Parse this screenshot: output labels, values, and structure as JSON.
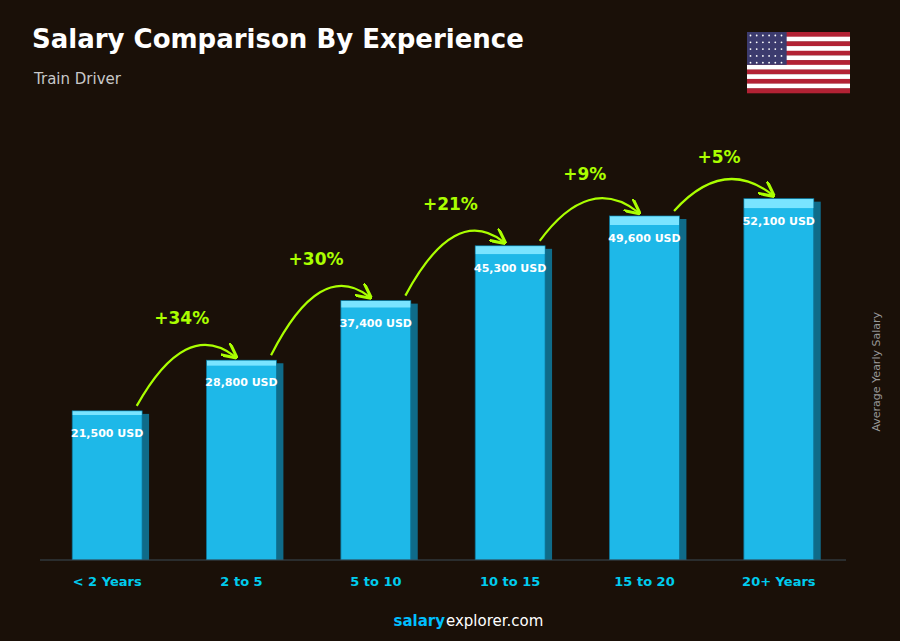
{
  "chart_data": {
    "type": "bar",
    "title": "Salary Comparison By Experience",
    "subtitle": "Train Driver",
    "y_label": "Average Yearly Salary",
    "categories": [
      "< 2 Years",
      "2 to 5",
      "5 to 10",
      "10 to 15",
      "15 to 20",
      "20+ Years"
    ],
    "values": [
      21500,
      28800,
      37400,
      45300,
      49600,
      52100
    ],
    "value_labels": [
      "21,500 USD",
      "28,800 USD",
      "37,400 USD",
      "45,300 USD",
      "49,600 USD",
      "52,100 USD"
    ],
    "data_labels": true,
    "annotations": [
      "+34%",
      "+30%",
      "+21%",
      "+9%",
      "+5%"
    ],
    "watermark": [
      "salary",
      "explorer.com"
    ],
    "color": "#1eb8e8",
    "ylim": [
      0,
      62000
    ],
    "tick_labels": "x",
    "grid": false
  }
}
